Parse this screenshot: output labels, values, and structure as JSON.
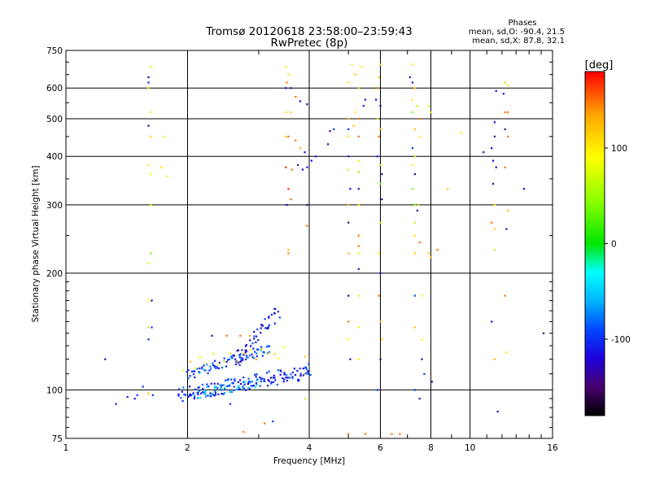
{
  "chart_data": {
    "type": "scatter",
    "title": "Tromsø 20120618 23:58:00–23:59:43",
    "subtitle": "RwPretec (8p)",
    "xlabel": "Frequency [MHz]",
    "ylabel": "Stationary phase Virtual Height [km]",
    "x_scale": "log",
    "y_scale": "log",
    "xlim": [
      1,
      16
    ],
    "ylim": [
      75,
      750
    ],
    "x_ticks": [
      1,
      2,
      4,
      6,
      8,
      10,
      16
    ],
    "x_tick_labels": [
      "1",
      "2",
      "4",
      "6",
      "8",
      "10",
      "16"
    ],
    "y_ticks": [
      75,
      100,
      200,
      300,
      400,
      500,
      600,
      750
    ],
    "y_tick_labels": [
      "75",
      "100",
      "200",
      "300",
      "400",
      "500",
      "600",
      "750"
    ],
    "grid": true,
    "stats": {
      "heading": "Phases",
      "line_o": "mean, sd,O: -90.4, 21.5",
      "line_x": "mean, sd,X:  87.8, 32.1"
    },
    "colorbar": {
      "label": "[deg]",
      "range": [
        -180,
        180
      ],
      "ticks": [
        100,
        0,
        -100
      ],
      "tick_labels": [
        "100",
        "0",
        "-100"
      ],
      "colormap": "rainbow"
    },
    "points": [
      {
        "x": 1.25,
        "y": 120,
        "phase": -130
      },
      {
        "x": 1.33,
        "y": 92,
        "phase": -110
      },
      {
        "x": 1.42,
        "y": 96,
        "phase": -110
      },
      {
        "x": 1.48,
        "y": 95,
        "phase": -115
      },
      {
        "x": 1.5,
        "y": 97,
        "phase": -100
      },
      {
        "x": 1.55,
        "y": 102,
        "phase": -105
      },
      {
        "x": 1.6,
        "y": 98,
        "phase": 120
      },
      {
        "x": 1.64,
        "y": 97,
        "phase": -100
      },
      {
        "x": 1.6,
        "y": 640,
        "phase": -130
      },
      {
        "x": 1.6,
        "y": 620,
        "phase": -110
      },
      {
        "x": 1.62,
        "y": 680,
        "phase": 100
      },
      {
        "x": 1.6,
        "y": 600,
        "phase": 100
      },
      {
        "x": 1.62,
        "y": 520,
        "phase": 100
      },
      {
        "x": 1.6,
        "y": 480,
        "phase": -140
      },
      {
        "x": 1.62,
        "y": 450,
        "phase": 110
      },
      {
        "x": 1.6,
        "y": 380,
        "phase": 100
      },
      {
        "x": 1.62,
        "y": 360,
        "phase": 90
      },
      {
        "x": 1.62,
        "y": 300,
        "phase": 100
      },
      {
        "x": 1.62,
        "y": 225,
        "phase": 40
      },
      {
        "x": 1.6,
        "y": 212,
        "phase": 60
      },
      {
        "x": 1.6,
        "y": 170,
        "phase": 100
      },
      {
        "x": 1.63,
        "y": 170,
        "phase": -140
      },
      {
        "x": 1.6,
        "y": 145,
        "phase": 120
      },
      {
        "x": 1.63,
        "y": 145,
        "phase": -100
      },
      {
        "x": 1.6,
        "y": 135,
        "phase": -100
      },
      {
        "x": 1.75,
        "y": 450,
        "phase": 100
      },
      {
        "x": 1.72,
        "y": 375,
        "phase": 100
      },
      {
        "x": 1.78,
        "y": 355,
        "phase": 80
      },
      {
        "x": 2.3,
        "y": 138,
        "phase": -130
      },
      {
        "x": 2.5,
        "y": 138,
        "phase": 150
      },
      {
        "x": 2.7,
        "y": 138,
        "phase": 150
      },
      {
        "x": 2.85,
        "y": 138,
        "phase": 140
      },
      {
        "x": 2.55,
        "y": 92,
        "phase": -100
      },
      {
        "x": 2.75,
        "y": 78,
        "phase": 150
      },
      {
        "x": 3.1,
        "y": 82,
        "phase": 150
      },
      {
        "x": 3.25,
        "y": 83,
        "phase": -100
      },
      {
        "x": 3.5,
        "y": 680,
        "phase": 100
      },
      {
        "x": 3.55,
        "y": 650,
        "phase": 100
      },
      {
        "x": 3.52,
        "y": 620,
        "phase": 150
      },
      {
        "x": 3.5,
        "y": 600,
        "phase": -120
      },
      {
        "x": 3.6,
        "y": 600,
        "phase": -130
      },
      {
        "x": 3.5,
        "y": 520,
        "phase": 110
      },
      {
        "x": 3.6,
        "y": 520,
        "phase": 110
      },
      {
        "x": 3.5,
        "y": 450,
        "phase": 120
      },
      {
        "x": 3.55,
        "y": 450,
        "phase": 150
      },
      {
        "x": 3.5,
        "y": 375,
        "phase": 170
      },
      {
        "x": 3.62,
        "y": 370,
        "phase": 150
      },
      {
        "x": 3.55,
        "y": 330,
        "phase": 170
      },
      {
        "x": 3.6,
        "y": 310,
        "phase": 150
      },
      {
        "x": 3.52,
        "y": 300,
        "phase": -120
      },
      {
        "x": 3.55,
        "y": 230,
        "phase": 120
      },
      {
        "x": 3.55,
        "y": 225,
        "phase": 150
      },
      {
        "x": 3.7,
        "y": 570,
        "phase": 150
      },
      {
        "x": 3.8,
        "y": 555,
        "phase": -130
      },
      {
        "x": 3.95,
        "y": 545,
        "phase": -140
      },
      {
        "x": 3.7,
        "y": 440,
        "phase": 150
      },
      {
        "x": 3.8,
        "y": 420,
        "phase": 130
      },
      {
        "x": 3.9,
        "y": 410,
        "phase": -120
      },
      {
        "x": 3.75,
        "y": 380,
        "phase": -140
      },
      {
        "x": 3.85,
        "y": 370,
        "phase": -120
      },
      {
        "x": 3.95,
        "y": 375,
        "phase": -110
      },
      {
        "x": 4.05,
        "y": 390,
        "phase": -120
      },
      {
        "x": 4.15,
        "y": 400,
        "phase": -110
      },
      {
        "x": 3.95,
        "y": 300,
        "phase": -140
      },
      {
        "x": 3.95,
        "y": 265,
        "phase": 150
      },
      {
        "x": 3.9,
        "y": 122,
        "phase": 120
      },
      {
        "x": 3.9,
        "y": 110,
        "phase": 110
      },
      {
        "x": 3.9,
        "y": 95,
        "phase": 60
      },
      {
        "x": 4.6,
        "y": 470,
        "phase": -100
      },
      {
        "x": 4.5,
        "y": 465,
        "phase": -140
      },
      {
        "x": 4.45,
        "y": 430,
        "phase": -130
      },
      {
        "x": 5.1,
        "y": 690,
        "phase": 100
      },
      {
        "x": 5.2,
        "y": 650,
        "phase": 120
      },
      {
        "x": 5.0,
        "y": 620,
        "phase": 100
      },
      {
        "x": 5.4,
        "y": 680,
        "phase": 100
      },
      {
        "x": 5.3,
        "y": 600,
        "phase": 110
      },
      {
        "x": 5.5,
        "y": 560,
        "phase": -120
      },
      {
        "x": 5.45,
        "y": 540,
        "phase": -110
      },
      {
        "x": 5.2,
        "y": 520,
        "phase": 100
      },
      {
        "x": 5.0,
        "y": 500,
        "phase": 120
      },
      {
        "x": 5.3,
        "y": 500,
        "phase": 150
      },
      {
        "x": 5.0,
        "y": 470,
        "phase": -100
      },
      {
        "x": 5.15,
        "y": 480,
        "phase": 120
      },
      {
        "x": 5.0,
        "y": 450,
        "phase": 100
      },
      {
        "x": 5.3,
        "y": 450,
        "phase": 150
      },
      {
        "x": 5.0,
        "y": 400,
        "phase": -110
      },
      {
        "x": 5.3,
        "y": 390,
        "phase": 100
      },
      {
        "x": 5.0,
        "y": 370,
        "phase": 60
      },
      {
        "x": 5.3,
        "y": 365,
        "phase": 40
      },
      {
        "x": 5.05,
        "y": 330,
        "phase": -120
      },
      {
        "x": 5.3,
        "y": 330,
        "phase": -120
      },
      {
        "x": 5.0,
        "y": 300,
        "phase": 120
      },
      {
        "x": 5.3,
        "y": 300,
        "phase": 100
      },
      {
        "x": 5.0,
        "y": 270,
        "phase": -140
      },
      {
        "x": 5.3,
        "y": 250,
        "phase": 150
      },
      {
        "x": 5.3,
        "y": 235,
        "phase": 150
      },
      {
        "x": 5.0,
        "y": 225,
        "phase": 120
      },
      {
        "x": 5.3,
        "y": 225,
        "phase": 100
      },
      {
        "x": 5.3,
        "y": 205,
        "phase": -110
      },
      {
        "x": 5.0,
        "y": 175,
        "phase": -140
      },
      {
        "x": 5.3,
        "y": 175,
        "phase": 100
      },
      {
        "x": 5.0,
        "y": 150,
        "phase": 150
      },
      {
        "x": 5.3,
        "y": 145,
        "phase": 100
      },
      {
        "x": 5.0,
        "y": 135,
        "phase": 100
      },
      {
        "x": 5.05,
        "y": 120,
        "phase": -140
      },
      {
        "x": 5.3,
        "y": 120,
        "phase": 100
      },
      {
        "x": 5.0,
        "y": 77,
        "phase": 150
      },
      {
        "x": 5.5,
        "y": 77,
        "phase": 150
      },
      {
        "x": 6.0,
        "y": 690,
        "phase": 100
      },
      {
        "x": 5.95,
        "y": 640,
        "phase": 120
      },
      {
        "x": 5.9,
        "y": 600,
        "phase": 150
      },
      {
        "x": 5.85,
        "y": 560,
        "phase": -130
      },
      {
        "x": 6.0,
        "y": 540,
        "phase": -120
      },
      {
        "x": 5.9,
        "y": 500,
        "phase": 60
      },
      {
        "x": 6.0,
        "y": 470,
        "phase": 120
      },
      {
        "x": 5.95,
        "y": 450,
        "phase": 150
      },
      {
        "x": 5.9,
        "y": 400,
        "phase": -100
      },
      {
        "x": 6.0,
        "y": 380,
        "phase": 60
      },
      {
        "x": 6.05,
        "y": 360,
        "phase": -140
      },
      {
        "x": 6.0,
        "y": 340,
        "phase": 40
      },
      {
        "x": 6.05,
        "y": 310,
        "phase": -130
      },
      {
        "x": 6.0,
        "y": 270,
        "phase": 60
      },
      {
        "x": 5.95,
        "y": 225,
        "phase": 100
      },
      {
        "x": 6.0,
        "y": 200,
        "phase": -110
      },
      {
        "x": 5.95,
        "y": 175,
        "phase": 150
      },
      {
        "x": 6.0,
        "y": 150,
        "phase": 120
      },
      {
        "x": 6.05,
        "y": 135,
        "phase": 110
      },
      {
        "x": 6.0,
        "y": 120,
        "phase": -140
      },
      {
        "x": 5.9,
        "y": 100,
        "phase": -100
      },
      {
        "x": 6.4,
        "y": 77,
        "phase": 150
      },
      {
        "x": 6.7,
        "y": 77,
        "phase": 150
      },
      {
        "x": 7.2,
        "y": 690,
        "phase": 100
      },
      {
        "x": 7.1,
        "y": 640,
        "phase": -120
      },
      {
        "x": 7.2,
        "y": 620,
        "phase": -130
      },
      {
        "x": 7.3,
        "y": 600,
        "phase": 120
      },
      {
        "x": 7.2,
        "y": 560,
        "phase": 100
      },
      {
        "x": 7.4,
        "y": 540,
        "phase": 60
      },
      {
        "x": 7.2,
        "y": 520,
        "phase": 40
      },
      {
        "x": 7.5,
        "y": 500,
        "phase": 150
      },
      {
        "x": 7.3,
        "y": 470,
        "phase": 120
      },
      {
        "x": 7.5,
        "y": 450,
        "phase": 100
      },
      {
        "x": 7.2,
        "y": 420,
        "phase": -100
      },
      {
        "x": 7.3,
        "y": 400,
        "phase": 60
      },
      {
        "x": 7.2,
        "y": 380,
        "phase": 100
      },
      {
        "x": 7.3,
        "y": 360,
        "phase": -140
      },
      {
        "x": 7.2,
        "y": 330,
        "phase": 40
      },
      {
        "x": 7.3,
        "y": 300,
        "phase": 40
      },
      {
        "x": 7.45,
        "y": 300,
        "phase": 60
      },
      {
        "x": 7.4,
        "y": 290,
        "phase": -140
      },
      {
        "x": 7.3,
        "y": 270,
        "phase": 60
      },
      {
        "x": 7.3,
        "y": 250,
        "phase": 100
      },
      {
        "x": 7.5,
        "y": 240,
        "phase": 150
      },
      {
        "x": 7.3,
        "y": 225,
        "phase": 120
      },
      {
        "x": 7.3,
        "y": 175,
        "phase": -90
      },
      {
        "x": 7.6,
        "y": 175,
        "phase": 100
      },
      {
        "x": 7.3,
        "y": 145,
        "phase": 120
      },
      {
        "x": 7.6,
        "y": 135,
        "phase": 100
      },
      {
        "x": 7.6,
        "y": 120,
        "phase": -140
      },
      {
        "x": 7.7,
        "y": 110,
        "phase": -100
      },
      {
        "x": 7.3,
        "y": 100,
        "phase": -100
      },
      {
        "x": 7.5,
        "y": 95,
        "phase": -110
      },
      {
        "x": 7.9,
        "y": 540,
        "phase": 60
      },
      {
        "x": 8.0,
        "y": 520,
        "phase": 100
      },
      {
        "x": 8.05,
        "y": 105,
        "phase": -140
      },
      {
        "x": 7.9,
        "y": 225,
        "phase": 120
      },
      {
        "x": 8.3,
        "y": 230,
        "phase": 150
      },
      {
        "x": 8.0,
        "y": 220,
        "phase": 120
      },
      {
        "x": 8.8,
        "y": 330,
        "phase": 120
      },
      {
        "x": 9.5,
        "y": 460,
        "phase": 100
      },
      {
        "x": 10.8,
        "y": 410,
        "phase": -140
      },
      {
        "x": 11.3,
        "y": 420,
        "phase": -120
      },
      {
        "x": 11.6,
        "y": 590,
        "phase": -120
      },
      {
        "x": 11.5,
        "y": 490,
        "phase": -130
      },
      {
        "x": 11.5,
        "y": 450,
        "phase": -140
      },
      {
        "x": 11.4,
        "y": 390,
        "phase": -120
      },
      {
        "x": 11.6,
        "y": 375,
        "phase": -140
      },
      {
        "x": 11.4,
        "y": 340,
        "phase": -130
      },
      {
        "x": 11.5,
        "y": 300,
        "phase": 100
      },
      {
        "x": 11.3,
        "y": 270,
        "phase": 150
      },
      {
        "x": 11.5,
        "y": 260,
        "phase": 120
      },
      {
        "x": 11.5,
        "y": 230,
        "phase": 60
      },
      {
        "x": 11.3,
        "y": 150,
        "phase": -120
      },
      {
        "x": 11.5,
        "y": 120,
        "phase": 120
      },
      {
        "x": 11.7,
        "y": 88,
        "phase": -140
      },
      {
        "x": 12.2,
        "y": 620,
        "phase": 120
      },
      {
        "x": 12.4,
        "y": 610,
        "phase": 80
      },
      {
        "x": 12.1,
        "y": 580,
        "phase": -120
      },
      {
        "x": 12.2,
        "y": 520,
        "phase": 150
      },
      {
        "x": 12.4,
        "y": 520,
        "phase": 150
      },
      {
        "x": 12.2,
        "y": 470,
        "phase": -140
      },
      {
        "x": 12.4,
        "y": 450,
        "phase": 150
      },
      {
        "x": 12.2,
        "y": 375,
        "phase": 150
      },
      {
        "x": 12.4,
        "y": 290,
        "phase": 120
      },
      {
        "x": 12.3,
        "y": 260,
        "phase": -120
      },
      {
        "x": 12.2,
        "y": 175,
        "phase": 150
      },
      {
        "x": 12.3,
        "y": 125,
        "phase": 100
      },
      {
        "x": 13.6,
        "y": 330,
        "phase": -120
      },
      {
        "x": 15.2,
        "y": 140,
        "phase": -140
      }
    ]
  }
}
